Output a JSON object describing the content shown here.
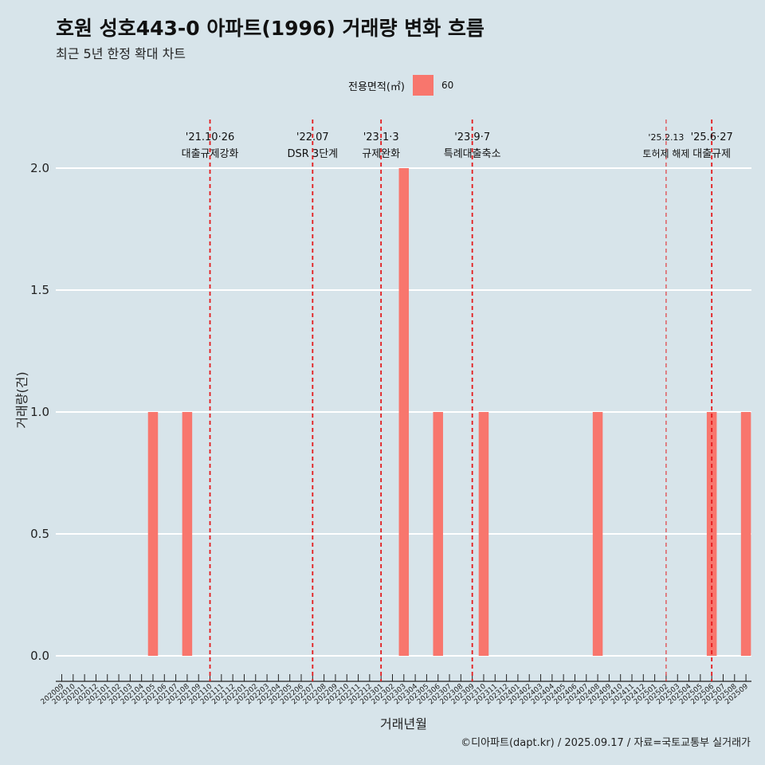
{
  "chart_data": {
    "type": "bar",
    "title": "호원 성호443-0 아파트(1996) 거래량 변화 흐름",
    "subtitle": "최근 5년 한정 확대 차트",
    "xlabel": "거래년월",
    "ylabel": "거래량(건)",
    "caption": "©디아파트(dapt.kr) / 2025.09.17 / 자료=국토교통부 실거래가",
    "legend": {
      "title": "전용면적(㎡)",
      "placement": "top"
    },
    "ylim": [
      0,
      2
    ],
    "y_ticks": [
      "0.0",
      "0.5",
      "1.0",
      "1.5",
      "2.0"
    ],
    "grid": true,
    "colors": {
      "bar": "#f8766d",
      "policy_line": "#e41a1c",
      "grid": "#ffffff",
      "background": "#d7e4ea"
    },
    "categories": [
      "202009",
      "202010",
      "202011",
      "202012",
      "202101",
      "202102",
      "202103",
      "202104",
      "202105",
      "202106",
      "202107",
      "202108",
      "202109",
      "202110",
      "202111",
      "202112",
      "202201",
      "202202",
      "202203",
      "202204",
      "202205",
      "202206",
      "202207",
      "202208",
      "202209",
      "202210",
      "202211",
      "202212",
      "202301",
      "202302",
      "202303",
      "202304",
      "202305",
      "202306",
      "202307",
      "202308",
      "202309",
      "202310",
      "202311",
      "202312",
      "202401",
      "202402",
      "202403",
      "202404",
      "202405",
      "202406",
      "202407",
      "202408",
      "202409",
      "202410",
      "202411",
      "202412",
      "202501",
      "202502",
      "202503",
      "202504",
      "202505",
      "202506",
      "202507",
      "202508",
      "202509"
    ],
    "series": [
      {
        "name": "60",
        "values": [
          0,
          0,
          0,
          0,
          0,
          0,
          0,
          0,
          1,
          0,
          0,
          1,
          0,
          0,
          0,
          0,
          0,
          0,
          0,
          0,
          0,
          0,
          0,
          0,
          0,
          0,
          0,
          0,
          0,
          0,
          2,
          0,
          0,
          1,
          0,
          0,
          0,
          1,
          0,
          0,
          0,
          0,
          0,
          0,
          0,
          0,
          0,
          1,
          0,
          0,
          0,
          0,
          0,
          0,
          0,
          0,
          0,
          1,
          0,
          0,
          1
        ]
      }
    ],
    "annotations": [
      {
        "x": "202110",
        "line1": "'21.10·26",
        "line2": "대출규제강화",
        "style": "thick"
      },
      {
        "x": "202207",
        "line1": "'22.07",
        "line2": "DSR 3단계",
        "style": "thick"
      },
      {
        "x": "202301",
        "line1": "'23.1·3",
        "line2": "규제완화",
        "style": "thick"
      },
      {
        "x": "202309",
        "line1": "'23.9·7",
        "line2": "특례대출축소",
        "style": "thick"
      },
      {
        "x": "202502",
        "line1": "'25.2.13",
        "line2": "토허제 해제",
        "style": "thin"
      },
      {
        "x": "202506",
        "line1": "'25.6·27",
        "line2": "대출규제",
        "style": "thick"
      }
    ]
  }
}
